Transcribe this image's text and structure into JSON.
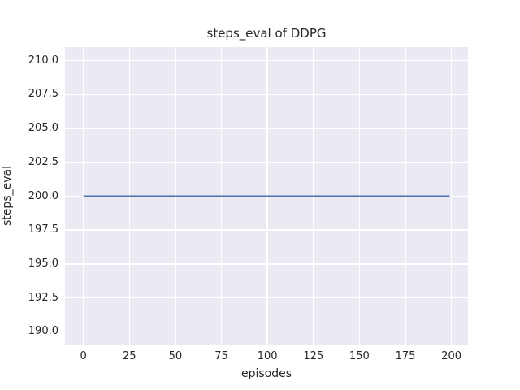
{
  "chart_data": {
    "type": "line",
    "title": "steps_eval of DDPG",
    "xlabel": "episodes",
    "ylabel": "steps_eval",
    "xlim": [
      -10,
      209
    ],
    "ylim": [
      189,
      211
    ],
    "grid": true,
    "legend": false,
    "x_ticks": [
      {
        "value": 0,
        "label": "0"
      },
      {
        "value": 25,
        "label": "25"
      },
      {
        "value": 50,
        "label": "50"
      },
      {
        "value": 75,
        "label": "75"
      },
      {
        "value": 100,
        "label": "100"
      },
      {
        "value": 125,
        "label": "125"
      },
      {
        "value": 150,
        "label": "150"
      },
      {
        "value": 175,
        "label": "175"
      },
      {
        "value": 200,
        "label": "200"
      }
    ],
    "y_ticks": [
      {
        "value": 190.0,
        "label": "190.0"
      },
      {
        "value": 192.5,
        "label": "192.5"
      },
      {
        "value": 195.0,
        "label": "195.0"
      },
      {
        "value": 197.5,
        "label": "197.5"
      },
      {
        "value": 200.0,
        "label": "200.0"
      },
      {
        "value": 202.5,
        "label": "202.5"
      },
      {
        "value": 205.0,
        "label": "205.0"
      },
      {
        "value": 207.5,
        "label": "207.5"
      },
      {
        "value": 210.0,
        "label": "210.0"
      }
    ],
    "series": [
      {
        "name": "steps_eval",
        "color": "#4c72b0",
        "x": [
          0,
          199
        ],
        "y": [
          200,
          200
        ]
      }
    ],
    "style": {
      "figure_background": "#ffffff",
      "axes_background": "#eaeaf2",
      "grid_color": "#ffffff",
      "text_color": "#262626"
    }
  }
}
